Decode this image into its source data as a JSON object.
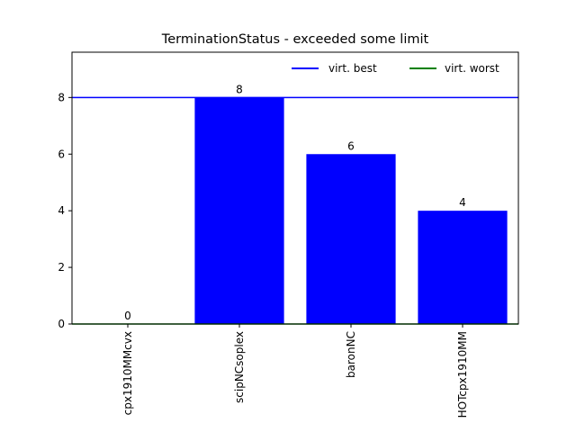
{
  "chart_data": {
    "type": "bar",
    "title": "TerminationStatus - exceeded some limit",
    "xlabel": "",
    "ylabel": "",
    "categories": [
      "cpx1910MMcvx",
      "scipNCsoplex",
      "baronNC",
      "HOTcpx1910MM"
    ],
    "values": [
      0,
      8,
      6,
      4
    ],
    "data_labels": [
      "0",
      "8",
      "6",
      "4"
    ],
    "ylim": [
      0,
      9.6
    ],
    "yticks": [
      0,
      2,
      4,
      6,
      8
    ],
    "ytick_labels": [
      "0",
      "2",
      "4",
      "6",
      "8"
    ],
    "bar_color": "#0000ff",
    "grid": false,
    "reference_lines": [
      {
        "name": "virt. best",
        "value": 8,
        "color": "#0000ff"
      },
      {
        "name": "virt. worst",
        "value": 0,
        "color": "#008000"
      }
    ],
    "legend": {
      "placement": "top-right",
      "entries": [
        "virt. best",
        "virt. worst"
      ]
    }
  }
}
